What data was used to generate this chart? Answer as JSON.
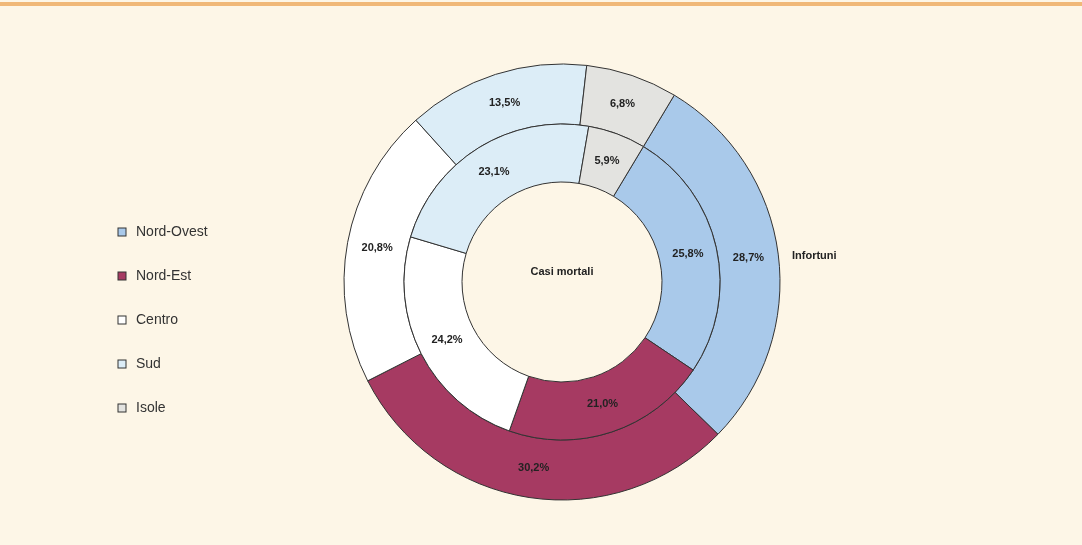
{
  "chart_data": {
    "type": "donut",
    "categories": [
      "Nord-Ovest",
      "Nord-Est",
      "Centro",
      "Sud",
      "Isole"
    ],
    "colors": [
      "#a9c9ea",
      "#a63a62",
      "#ffffff",
      "#dcedf7",
      "#e3e3e0"
    ],
    "series": [
      {
        "name": "Infortuni",
        "values": [
          28.7,
          30.2,
          20.8,
          13.5,
          6.8
        ],
        "value_labels": [
          "28,7%",
          "30,2%",
          "20,8%",
          "13,5%",
          "6,8%"
        ]
      },
      {
        "name": "Casi mortali",
        "values": [
          25.8,
          21.0,
          24.2,
          23.1,
          5.9
        ],
        "value_labels": [
          "25,8%",
          "21,0%",
          "24,2%",
          "23,1%",
          "5,9%"
        ]
      }
    ],
    "legend": "left"
  }
}
